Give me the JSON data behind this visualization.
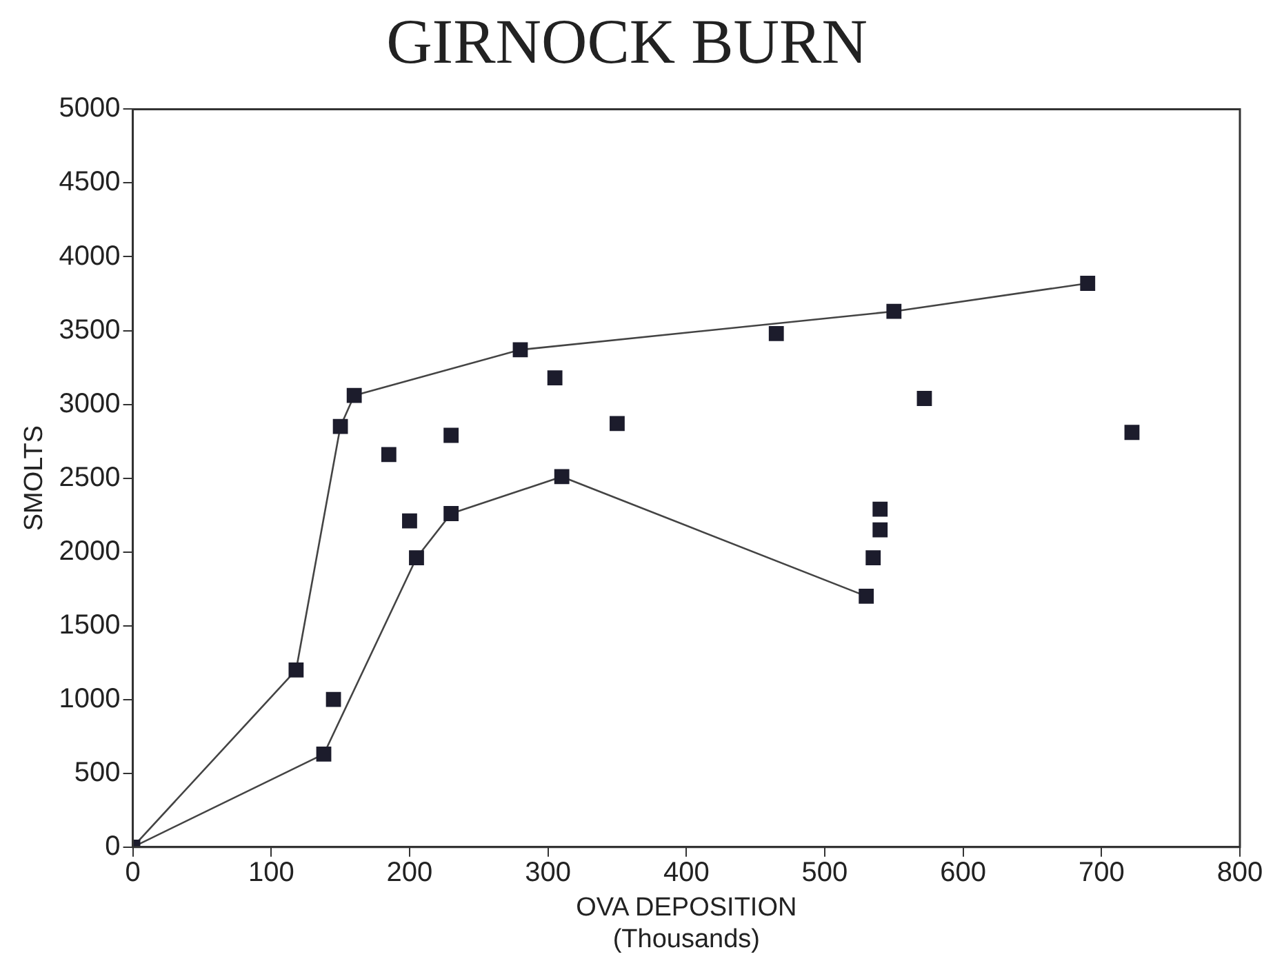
{
  "chart_data": {
    "type": "scatter",
    "title": "GIRNOCK BURN",
    "xlabel": "OVA DEPOSITION\n(Thousands)",
    "ylabel": "SMOLTS",
    "xlim": [
      0,
      800
    ],
    "xticks": [
      0,
      100,
      200,
      300,
      400,
      500,
      600,
      700,
      800
    ],
    "ylim": [
      0,
      5000
    ],
    "yticks": [
      0,
      500,
      1000,
      1500,
      2000,
      2500,
      3000,
      3500,
      4000,
      4500,
      5000
    ],
    "grid": false,
    "legend": false,
    "marker": "square",
    "series": [
      {
        "type": "scatter",
        "color": "#1c1c2c",
        "x": [
          0,
          118,
          138,
          145,
          150,
          160,
          185,
          200,
          205,
          230,
          230,
          280,
          305,
          310,
          350,
          465,
          530,
          535,
          540,
          540,
          550,
          572,
          690,
          722
        ],
        "values": [
          0,
          1200,
          630,
          1000,
          2850,
          3060,
          2660,
          2210,
          1960,
          2790,
          2260,
          3370,
          3180,
          2510,
          2870,
          3480,
          1700,
          1960,
          2290,
          2150,
          3630,
          3040,
          3820,
          2810
        ]
      },
      {
        "type": "line",
        "color": "#444444",
        "marker": "none",
        "line_style": "solid",
        "x": [
          0,
          118,
          150,
          160,
          280,
          550,
          690
        ],
        "values": [
          0,
          1200,
          2850,
          3060,
          3370,
          3630,
          3820
        ]
      },
      {
        "type": "line",
        "color": "#444444",
        "marker": "none",
        "line_style": "solid",
        "x": [
          0,
          138,
          205,
          230,
          310,
          530
        ],
        "values": [
          0,
          630,
          1960,
          2260,
          2510,
          1700
        ]
      }
    ]
  }
}
